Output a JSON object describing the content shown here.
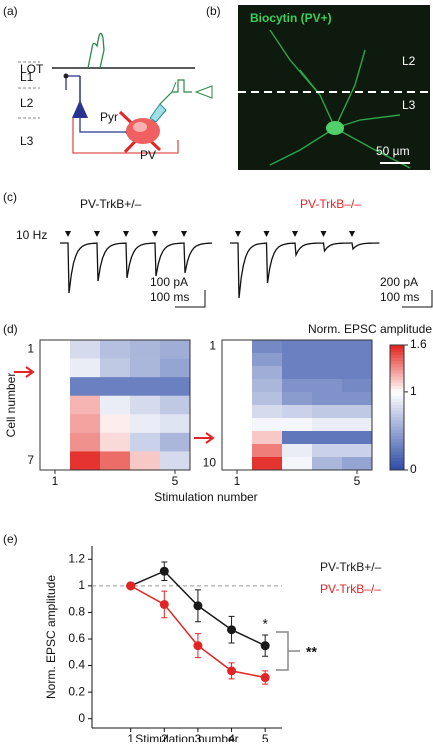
{
  "panel_labels": {
    "a": "(a)",
    "b": "(b)",
    "c": "(c)",
    "d": "(d)",
    "e": "(e)"
  },
  "schematic": {
    "lot": "LOT",
    "l1": "L1",
    "l2": "L2",
    "l3": "L3",
    "pyr": "Pyr",
    "pv": "PV"
  },
  "micrograph": {
    "title": "Biocytin (PV+)",
    "upper_layer": "L2",
    "lower_layer": "L3",
    "scale_bar": "50 µm"
  },
  "traces": {
    "stimulus": "10 Hz",
    "left_title": "PV-TrkB+/–",
    "right_title": "PV-TrkB–/–",
    "left_scale_current": "100 pA",
    "left_scale_time": "100 ms",
    "right_scale_current": "200 pA",
    "right_scale_time": "100 ms"
  },
  "chart_data": [
    {
      "type": "heatmap",
      "ylabel": "Cell number",
      "xlabel": "Stimulation number",
      "xticks": [
        1,
        5
      ],
      "yticks": [
        1,
        7
      ],
      "values": [
        [
          1,
          0.8,
          0.65,
          0.6,
          0.55
        ],
        [
          1,
          0.9,
          0.7,
          0.6,
          0.5
        ],
        [
          1,
          0.3,
          0.3,
          0.3,
          0.3
        ],
        [
          1,
          1.2,
          0.9,
          0.8,
          0.7
        ],
        [
          1,
          1.25,
          1.05,
          0.9,
          0.85
        ],
        [
          1,
          1.3,
          1.1,
          0.75,
          0.6
        ],
        [
          1,
          1.55,
          1.4,
          1.15,
          0.8
        ]
      ]
    },
    {
      "type": "heatmap",
      "xticks": [
        1,
        5
      ],
      "yticks": [
        1,
        10
      ],
      "values": [
        [
          1,
          0.35,
          0.3,
          0.3,
          0.3
        ],
        [
          1,
          0.45,
          0.3,
          0.3,
          0.3
        ],
        [
          1,
          0.55,
          0.3,
          0.3,
          0.3
        ],
        [
          1,
          0.6,
          0.4,
          0.4,
          0.35
        ],
        [
          1,
          0.65,
          0.45,
          0.4,
          0.4
        ],
        [
          1,
          0.8,
          0.75,
          0.7,
          0.7
        ],
        [
          1,
          0.95,
          0.95,
          0.9,
          0.9
        ],
        [
          1,
          1.15,
          0.25,
          0.25,
          0.25
        ],
        [
          1,
          1.35,
          0.9,
          0.75,
          0.75
        ],
        [
          1,
          1.55,
          0.95,
          0.6,
          0.5
        ]
      ]
    },
    {
      "type": "colorbar",
      "title": "Norm. EPSC amplitude",
      "ylim": [
        0,
        1.6
      ],
      "yticks": [
        0,
        1,
        1.6
      ]
    },
    {
      "type": "line",
      "xlabel": "Stimulation number",
      "ylabel": "Norm. EPSC amplitude",
      "x": [
        1,
        2,
        3,
        4,
        5
      ],
      "xlim": [
        -0.15,
        5.5
      ],
      "xticks": [
        1,
        2,
        3,
        4,
        5
      ],
      "ylim": [
        -0.07,
        1.3
      ],
      "yticks": [
        0,
        0.2,
        0.4,
        0.6,
        0.8,
        1,
        1.2
      ],
      "reference_line": 1,
      "series": [
        {
          "name": "PV-TrkB+/–",
          "color": "#1a1a1a",
          "values": [
            1,
            1.11,
            0.85,
            0.67,
            0.55
          ],
          "errors": [
            0,
            0.07,
            0.12,
            0.1,
            0.08
          ]
        },
        {
          "name": "PV-TrkB–/–",
          "color": "#e32424",
          "values": [
            1,
            0.86,
            0.55,
            0.36,
            0.31
          ],
          "errors": [
            0,
            0.1,
            0.09,
            0.06,
            0.05
          ]
        }
      ],
      "annotations": [
        "*",
        "**"
      ]
    }
  ]
}
